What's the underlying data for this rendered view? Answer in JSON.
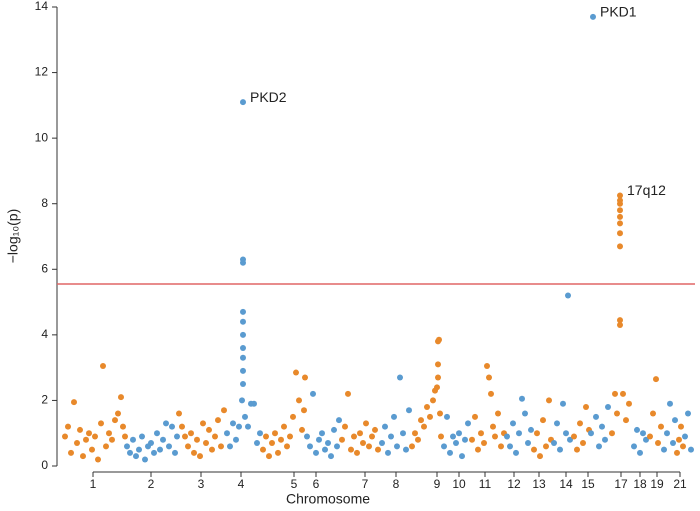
{
  "chart_data": {
    "type": "scatter",
    "xlabel": "Chromosome",
    "ylabel": "−log₁₀(p)",
    "xlim": [
      0,
      638
    ],
    "ylim": [
      0,
      14
    ],
    "yticks": [
      0,
      2,
      4,
      6,
      8,
      10,
      12,
      14
    ],
    "xticks": [
      {
        "value": 36,
        "label": "1"
      },
      {
        "value": 94,
        "label": "2"
      },
      {
        "value": 144,
        "label": "3"
      },
      {
        "value": 184,
        "label": "4"
      },
      {
        "value": 237,
        "label": "5"
      },
      {
        "value": 259,
        "label": "6"
      },
      {
        "value": 308,
        "label": "7"
      },
      {
        "value": 339,
        "label": "8"
      },
      {
        "value": 380,
        "label": "9"
      },
      {
        "value": 402,
        "label": "10"
      },
      {
        "value": 428,
        "label": "11"
      },
      {
        "value": 457,
        "label": "12"
      },
      {
        "value": 482,
        "label": "13"
      },
      {
        "value": 509,
        "label": "14"
      },
      {
        "value": 531,
        "label": "15"
      },
      {
        "value": 564,
        "label": "17"
      },
      {
        "value": 583,
        "label": "18"
      },
      {
        "value": 600,
        "label": "19"
      },
      {
        "value": 623,
        "label": "21"
      }
    ],
    "threshold": {
      "value": 5.55,
      "color": "#e06666"
    },
    "chromosomes": [
      {
        "color": "#e8892b",
        "x": [
          8,
          11,
          14,
          17,
          20,
          23,
          26,
          29,
          32,
          35,
          38,
          41,
          44,
          46,
          49,
          52,
          55,
          58,
          61,
          64,
          66,
          68
        ],
        "y": [
          0.9,
          1.2,
          0.4,
          1.95,
          0.7,
          1.1,
          0.3,
          0.8,
          1.0,
          0.5,
          0.9,
          0.2,
          1.3,
          3.05,
          0.6,
          1.0,
          0.8,
          1.4,
          1.6,
          2.1,
          1.2,
          0.9
        ]
      },
      {
        "color": "#5a9bd0",
        "x": [
          70,
          73,
          76,
          79,
          82,
          85,
          88,
          91,
          94,
          97,
          100,
          103,
          106,
          109,
          112,
          115,
          118,
          120
        ],
        "y": [
          0.6,
          0.4,
          0.8,
          0.3,
          0.5,
          0.9,
          0.2,
          0.6,
          0.7,
          0.4,
          1.0,
          0.5,
          0.8,
          1.3,
          0.6,
          1.2,
          0.4,
          0.9
        ]
      },
      {
        "color": "#e8892b",
        "x": [
          122,
          125,
          128,
          131,
          134,
          137,
          140,
          143,
          146,
          149,
          152,
          155,
          158,
          161,
          164,
          167
        ],
        "y": [
          1.6,
          1.2,
          0.9,
          0.6,
          1.0,
          0.4,
          0.8,
          0.3,
          1.3,
          0.7,
          1.1,
          0.5,
          0.9,
          1.4,
          0.6,
          1.7
        ]
      },
      {
        "color": "#5a9bd0",
        "annotation": "PKD2",
        "x": [
          170,
          173,
          176,
          179,
          182,
          185,
          186,
          186,
          186,
          186,
          186,
          186,
          186,
          186,
          186,
          186,
          188,
          191,
          194,
          197,
          200,
          203
        ],
        "y": [
          1.0,
          0.6,
          1.3,
          0.8,
          1.2,
          2.0,
          2.9,
          3.6,
          4.0,
          4.4,
          4.7,
          6.2,
          6.3,
          11.1,
          3.3,
          2.5,
          1.5,
          1.2,
          1.9,
          1.9,
          0.7,
          1.0
        ]
      },
      {
        "color": "#e8892b",
        "x": [
          206,
          209,
          212,
          215,
          218,
          221,
          224,
          227,
          230,
          233,
          236,
          239,
          242,
          245,
          247,
          248
        ],
        "y": [
          0.5,
          0.9,
          0.3,
          0.7,
          1.0,
          0.4,
          0.8,
          1.2,
          0.6,
          0.9,
          1.5,
          2.85,
          2.0,
          1.1,
          1.7,
          2.7
        ]
      },
      {
        "color": "#5a9bd0",
        "x": [
          250,
          253,
          256,
          259,
          262,
          265,
          268,
          271,
          274,
          277,
          280,
          282
        ],
        "y": [
          0.9,
          0.6,
          2.2,
          0.4,
          0.8,
          1.0,
          0.5,
          0.7,
          0.3,
          1.1,
          0.6,
          1.4
        ]
      },
      {
        "color": "#e8892b",
        "x": [
          285,
          288,
          291,
          294,
          297,
          300,
          303,
          306,
          309,
          312,
          315,
          318,
          321
        ],
        "y": [
          0.8,
          1.2,
          2.2,
          0.5,
          0.9,
          0.4,
          1.0,
          0.7,
          1.3,
          0.6,
          0.9,
          1.1,
          0.5
        ]
      },
      {
        "color": "#5a9bd0",
        "x": [
          325,
          328,
          331,
          334,
          337,
          340,
          343,
          346,
          349,
          352
        ],
        "y": [
          0.7,
          1.2,
          0.4,
          0.9,
          1.5,
          0.6,
          2.7,
          1.0,
          0.5,
          1.7
        ]
      },
      {
        "color": "#e8892b",
        "x": [
          355,
          358,
          361,
          364,
          367,
          370,
          373,
          376,
          378,
          380,
          381,
          381,
          381,
          382,
          383,
          384
        ],
        "y": [
          0.6,
          1.0,
          0.8,
          1.4,
          1.2,
          1.8,
          1.5,
          2.0,
          2.3,
          2.4,
          2.7,
          3.1,
          3.8,
          3.85,
          1.6,
          0.9
        ]
      },
      {
        "color": "#5a9bd0",
        "x": [
          387,
          390,
          393,
          396,
          399,
          402,
          405,
          408,
          411
        ],
        "y": [
          0.6,
          1.5,
          0.4,
          0.9,
          0.7,
          1.0,
          0.3,
          0.8,
          1.3
        ]
      },
      {
        "color": "#e8892b",
        "x": [
          415,
          418,
          421,
          424,
          427,
          430,
          432,
          434,
          436,
          438,
          441,
          444,
          447
        ],
        "y": [
          0.8,
          1.5,
          0.5,
          1.0,
          0.7,
          3.05,
          2.7,
          2.2,
          1.2,
          0.9,
          1.6,
          0.6,
          1.0
        ]
      },
      {
        "color": "#5a9bd0",
        "x": [
          450,
          453,
          456,
          459,
          462,
          465,
          468,
          471,
          474
        ],
        "y": [
          0.9,
          0.6,
          1.3,
          0.4,
          1.0,
          2.05,
          1.6,
          0.7,
          1.1
        ]
      },
      {
        "color": "#e8892b",
        "x": [
          477,
          480,
          483,
          486,
          489,
          492,
          494
        ],
        "y": [
          0.5,
          1.0,
          0.3,
          1.4,
          0.6,
          2.0,
          0.8
        ]
      },
      {
        "color": "#5a9bd0",
        "x": [
          497,
          500,
          503,
          506,
          509,
          511,
          513
        ],
        "y": [
          0.7,
          1.3,
          0.5,
          1.9,
          1.0,
          5.2,
          0.8
        ]
      },
      {
        "color": "#e8892b",
        "x": [
          517,
          520,
          523,
          526,
          529,
          532
        ],
        "y": [
          0.9,
          0.5,
          1.3,
          0.7,
          1.8,
          1.1
        ]
      },
      {
        "color": "#5a9bd0",
        "annotation": "PKD1",
        "x": [
          534,
          536,
          539,
          542,
          545,
          548,
          551
        ],
        "y": [
          1.0,
          13.7,
          1.5,
          0.6,
          1.2,
          0.8,
          1.8
        ]
      },
      {
        "color": "#e8892b",
        "annotation": "17q12",
        "x": [
          555,
          558,
          560,
          563,
          563,
          563,
          563,
          563,
          563,
          563,
          563,
          563,
          563,
          566,
          569,
          572
        ],
        "y": [
          1.0,
          2.2,
          1.6,
          4.3,
          4.45,
          6.7,
          7.1,
          7.4,
          7.6,
          7.8,
          8.0,
          8.1,
          8.25,
          2.2,
          1.4,
          1.9
        ]
      },
      {
        "color": "#5a9bd0",
        "x": [
          577,
          580,
          583,
          586,
          589
        ],
        "y": [
          0.6,
          1.1,
          0.4,
          1.0,
          0.8
        ]
      },
      {
        "color": "#e8892b",
        "x": [
          593,
          596,
          599,
          601,
          604
        ],
        "y": [
          0.9,
          1.6,
          2.65,
          0.7,
          1.2
        ]
      },
      {
        "color": "#5a9bd0",
        "x": [
          607,
          610,
          613,
          616,
          618
        ],
        "y": [
          0.5,
          1.0,
          1.9,
          0.7,
          1.4
        ]
      },
      {
        "color": "#e8892b",
        "x": [
          620,
          622,
          624,
          626
        ],
        "y": [
          0.4,
          0.8,
          1.2,
          0.6
        ]
      },
      {
        "color": "#5a9bd0",
        "x": [
          628,
          631,
          634
        ],
        "y": [
          0.9,
          1.6,
          0.5
        ]
      }
    ]
  }
}
